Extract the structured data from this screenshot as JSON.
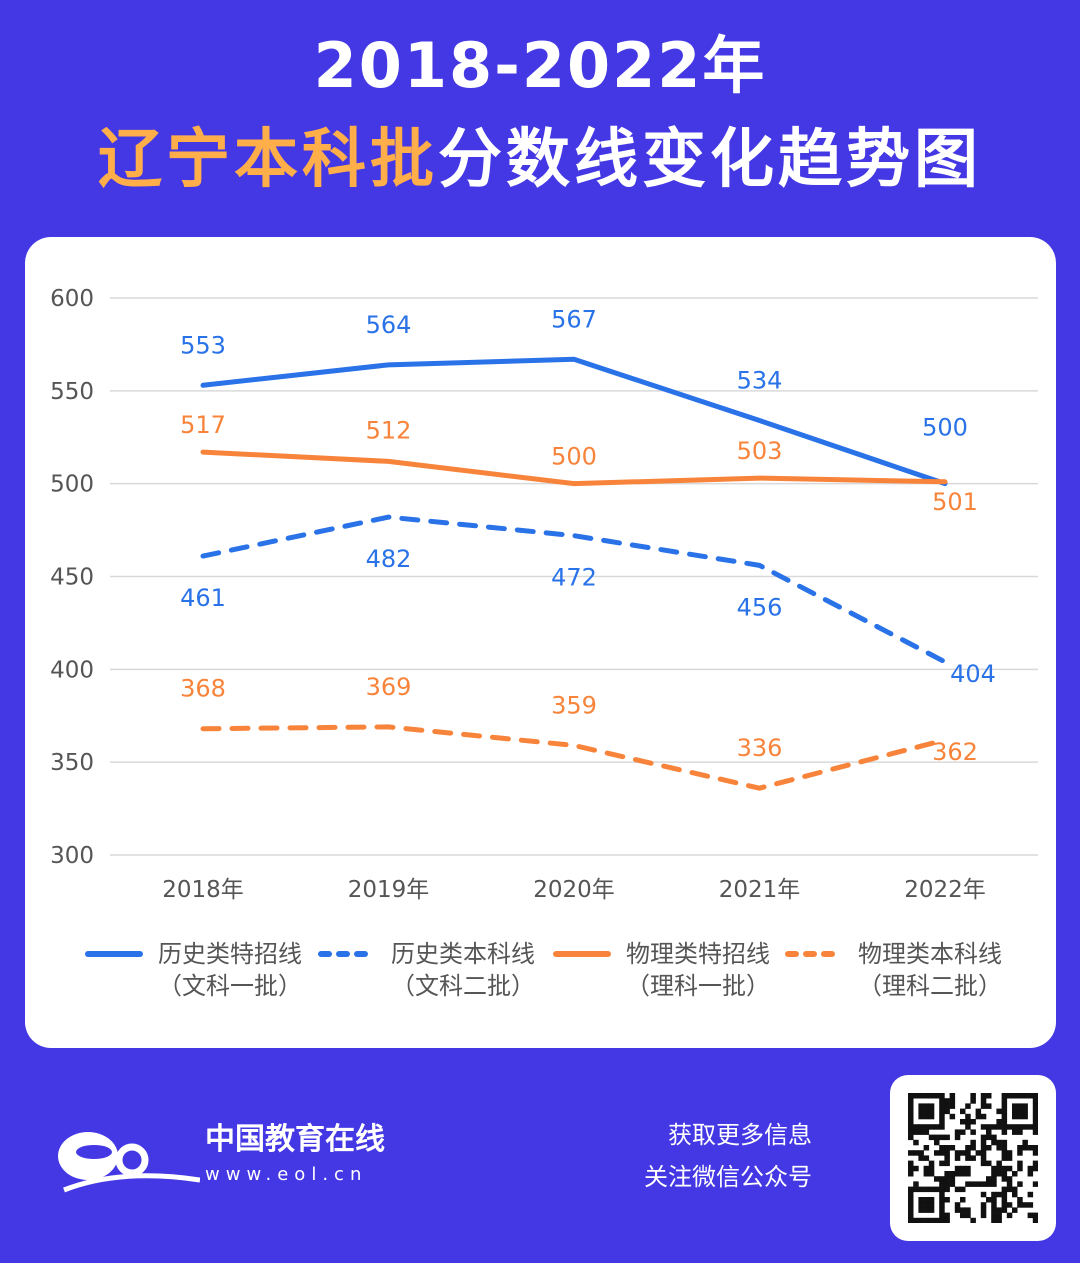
{
  "header": {
    "title_line1": "2018-2022年",
    "title_highlight": "辽宁本科批",
    "title_rest": "分数线变化趋势图"
  },
  "colors": {
    "background": "#4438e4",
    "highlight": "#ffae4a",
    "blue": "#2a72e8",
    "orange": "#f7843a",
    "grid": "#d9d9d9"
  },
  "chart_data": {
    "type": "line",
    "categories": [
      "2018年",
      "2019年",
      "2020年",
      "2021年",
      "2022年"
    ],
    "ylim": [
      300,
      600
    ],
    "yticks": [
      300,
      350,
      400,
      450,
      500,
      550,
      600
    ],
    "grid": true,
    "legend_position": "bottom",
    "series": [
      {
        "name": "历史类特招线",
        "subname": "（文科一批）",
        "color": "#2a72e8",
        "style": "solid",
        "values": [
          553,
          564,
          567,
          534,
          500
        ]
      },
      {
        "name": "历史类本科线",
        "subname": "（文科二批）",
        "color": "#2a72e8",
        "style": "dashed",
        "values": [
          461,
          482,
          472,
          456,
          404
        ]
      },
      {
        "name": "物理类特招线",
        "subname": "（理科一批）",
        "color": "#f7843a",
        "style": "solid",
        "values": [
          517,
          512,
          500,
          503,
          501
        ]
      },
      {
        "name": "物理类本科线",
        "subname": "（理科二批）",
        "color": "#f7843a",
        "style": "dashed",
        "values": [
          368,
          369,
          359,
          336,
          362
        ]
      }
    ]
  },
  "footer": {
    "brand": "中国教育在线",
    "url": "www.eol.cn",
    "logo_text": "eol",
    "info_line1": "获取更多信息",
    "info_line2": "关注微信公众号",
    "qr_icon": "qr-code-icon"
  }
}
